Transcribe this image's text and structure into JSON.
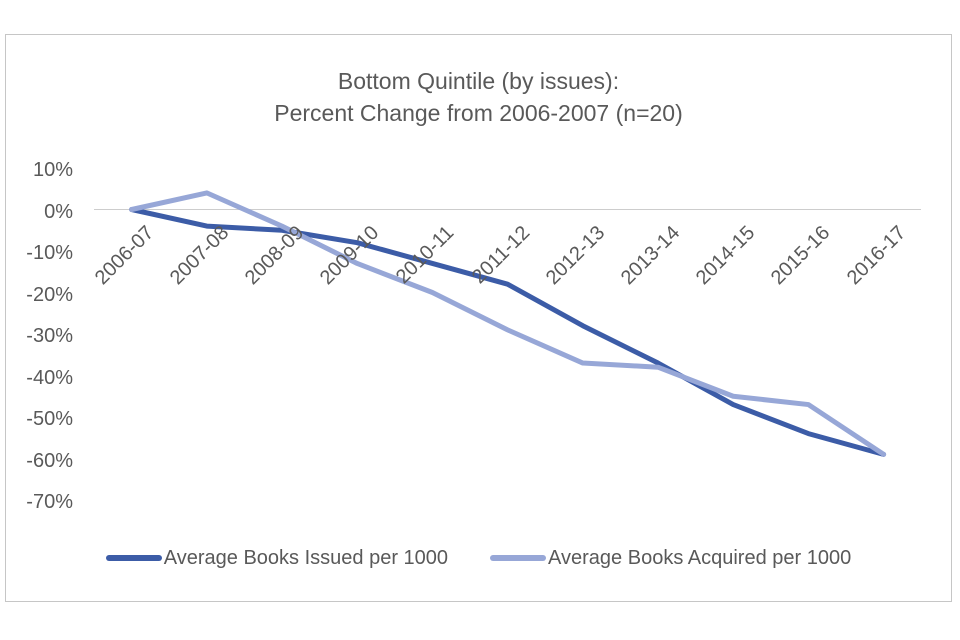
{
  "chart_data": {
    "type": "line",
    "title_line1": "Bottom Quintile (by issues):",
    "title_line2": "Percent Change from 2006-2007 (n=20)",
    "categories": [
      "2006-07",
      "2007-08",
      "2008-09",
      "2009-10",
      "2010-11",
      "2011-12",
      "2012-13",
      "2013-14",
      "2014-15",
      "2015-16",
      "2016-17"
    ],
    "series": [
      {
        "name": "Average Books Issued per 1000",
        "color": "#3c5ca7",
        "values": [
          0,
          -4,
          -5,
          -8,
          -13,
          -18,
          -28,
          -37,
          -47,
          -54,
          -59
        ]
      },
      {
        "name": "Average Books Acquired per 1000",
        "color": "#97a7d7",
        "values": [
          0,
          4,
          -4,
          -13,
          -20,
          -29,
          -37,
          -38,
          -45,
          -47,
          -59
        ]
      }
    ],
    "y_axis": {
      "tick_labels": [
        "10%",
        "0%",
        "-10%",
        "-20%",
        "-30%",
        "-40%",
        "-50%",
        "-60%",
        "-70%"
      ],
      "max": 10,
      "min": -70,
      "step": -10,
      "unit": "percent"
    },
    "x_axis": {
      "label_rotation_deg": -45
    },
    "legend_position": "bottom",
    "grid": "single horizontal line at 0% only",
    "colors": {
      "text": "#595959",
      "frame_border": "#c6c6c6",
      "zero_line": "#cdcdcd",
      "background": "#ffffff"
    }
  }
}
